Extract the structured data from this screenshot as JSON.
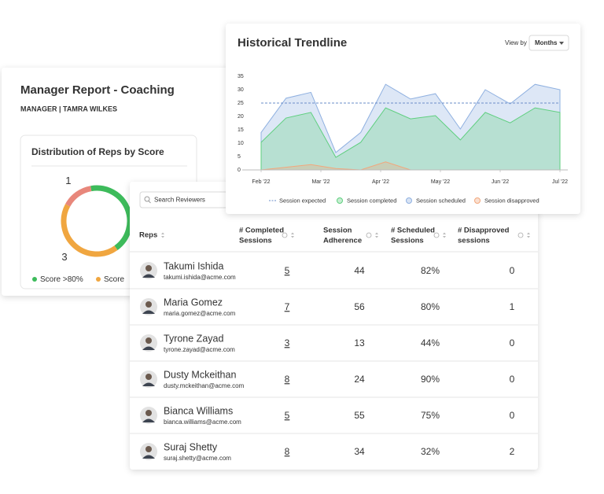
{
  "manager_report": {
    "title": "Manager Report - Coaching",
    "subtitle": "MANAGER | TAMRA WILKES",
    "distribution": {
      "type": "pie",
      "title": "Distribution of Reps by Score",
      "series": [
        {
          "name": "Score >80%",
          "color": "#3dbb5b",
          "value": 3
        },
        {
          "name": "Score",
          "color": "#f0a640",
          "value": 3
        },
        {
          "color": "#e8877b",
          "value": 1
        }
      ]
    }
  },
  "trend": {
    "type": "area",
    "title": "Historical Trendline",
    "view_by_label": "View by",
    "view_by_value": "Months",
    "x": [
      0,
      1,
      2,
      3,
      4,
      5,
      6,
      7,
      8,
      9,
      10,
      11,
      12
    ],
    "xlim": [
      0,
      12
    ],
    "xticks": [
      {
        "value": 0,
        "label": "Feb '22"
      },
      {
        "value": 2.4,
        "label": "Mar '22"
      },
      {
        "value": 4.8,
        "label": "Apr '22"
      },
      {
        "value": 7.2,
        "label": "May '22"
      },
      {
        "value": 9.6,
        "label": "Jun '22"
      },
      {
        "value": 12,
        "label": "Jul '22"
      }
    ],
    "ylim": [
      0,
      35
    ],
    "yticks": [
      0,
      5,
      10,
      15,
      20,
      25,
      30,
      35
    ],
    "series": [
      {
        "name": "Session expected",
        "color": "#6a8cc8",
        "style": "dashed",
        "values": [
          25,
          25,
          25,
          25,
          25,
          25,
          25,
          25,
          25,
          25,
          25,
          25,
          25
        ]
      },
      {
        "name": "Session completed",
        "color": "#5fcf7f",
        "values": [
          10.3,
          19.4,
          21.5,
          4.7,
          10.3,
          23.2,
          19.1,
          20.3,
          11.2,
          21.5,
          17.6,
          23.2,
          21.5
        ]
      },
      {
        "name": "Session scheduled",
        "color": "#8fb0e0",
        "values": [
          14,
          26.8,
          29,
          6.5,
          14,
          32,
          26.5,
          28.5,
          15.3,
          30,
          24.7,
          32,
          30
        ]
      },
      {
        "name": "Session disapproved",
        "color": "#f2a77c",
        "values": [
          0,
          1,
          2,
          0.5,
          0,
          3,
          0,
          0,
          0,
          0,
          0,
          0,
          0
        ]
      }
    ]
  },
  "table": {
    "search_placeholder": "Search Reviewers",
    "headers": [
      [
        "Reps"
      ],
      [
        "# Completed",
        "Sessions"
      ],
      [
        "Session",
        "Adherence"
      ],
      [
        "# Scheduled",
        "Sessions"
      ],
      [
        "# Disapproved",
        "sessions"
      ]
    ],
    "rows": [
      {
        "name": "Takumi Ishida",
        "email": "takumi.ishida@acme.com",
        "completed": 5,
        "adherence": 44,
        "scheduled": "82%",
        "scheduled_color": "#4cb86a",
        "disapproved": 0
      },
      {
        "name": "Maria Gomez",
        "email": "maria.gomez@acme.com",
        "completed": 7,
        "adherence": 56,
        "scheduled": "80%",
        "scheduled_color": "#4cb86a",
        "disapproved": 1
      },
      {
        "name": "Tyrone Zayad",
        "email": "tyrone.zayad@acme.com",
        "completed": 3,
        "adherence": 13,
        "scheduled": "44%",
        "scheduled_color": "#f09a5e",
        "disapproved": 0
      },
      {
        "name": "Dusty Mckeithan",
        "email": "dusty.mckeithan@acme.com",
        "completed": 8,
        "adherence": 24,
        "scheduled": "90%",
        "scheduled_color": "#4cb86a",
        "disapproved": 0
      },
      {
        "name": "Bianca Williams",
        "email": "bianca.williams@acme.com",
        "completed": 5,
        "adherence": 55,
        "scheduled": "75%",
        "scheduled_color": "#f09a5e",
        "disapproved": 0
      },
      {
        "name": "Suraj Shetty",
        "email": "suraj.shetty@acme.com",
        "completed": 8,
        "adherence": 34,
        "scheduled": "32%",
        "scheduled_color": "#f09a5e",
        "disapproved": 2
      }
    ]
  }
}
